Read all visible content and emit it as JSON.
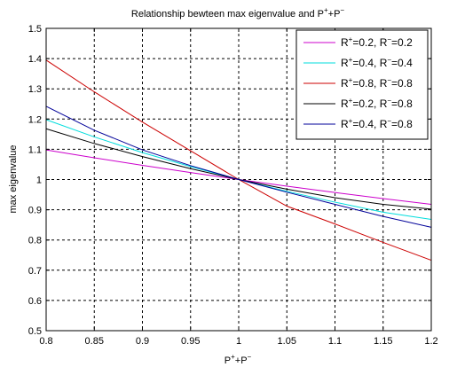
{
  "chart_data": {
    "type": "line",
    "title": {
      "main": "Relationship bewteen max eigenvalue and P",
      "sup1": "+",
      "mid": "+P",
      "sup2": "−"
    },
    "xlabel": {
      "p1": "P",
      "s1": "+",
      "p2": "+P",
      "s2": "−"
    },
    "ylabel": "max eigenvalue",
    "xlim": [
      0.8,
      1.2
    ],
    "ylim": [
      0.5,
      1.5
    ],
    "grid": true,
    "legend_position": "top-right",
    "x_ticks": [
      "0.8",
      "0.85",
      "0.9",
      "0.95",
      "1",
      "1.05",
      "1.1",
      "1.15",
      "1.2"
    ],
    "y_ticks": [
      "0.5",
      "0.6",
      "0.7",
      "0.8",
      "0.9",
      "1",
      "1.1",
      "1.2",
      "1.3",
      "1.4",
      "1.5"
    ],
    "x_tick_values": [
      0.8,
      0.85,
      0.9,
      0.95,
      1.0,
      1.05,
      1.1,
      1.15,
      1.2
    ],
    "y_tick_values": [
      0.5,
      0.6,
      0.7,
      0.8,
      0.9,
      1.0,
      1.1,
      1.2,
      1.3,
      1.4,
      1.5
    ],
    "x": [
      0.8,
      0.85,
      0.9,
      0.95,
      1.0,
      1.05,
      1.1,
      1.15,
      1.2
    ],
    "series": [
      {
        "name": "R+=0.2, R−=0.2",
        "legend": {
          "r1": "R",
          "s1": "+",
          "m": "=0.2, R",
          "s2": "−",
          "e": "=0.2"
        },
        "color": "#cc00cc",
        "values": [
          1.098,
          1.072,
          1.047,
          1.023,
          1.0,
          0.978,
          0.957,
          0.937,
          0.918
        ]
      },
      {
        "name": "R+=0.4, R−=0.4",
        "legend": {
          "r1": "R",
          "s1": "+",
          "m": "=0.4, R",
          "s2": "−",
          "e": "=0.4"
        },
        "color": "#00dddd",
        "values": [
          1.198,
          1.141,
          1.089,
          1.043,
          1.0,
          0.961,
          0.925,
          0.892,
          0.868
        ]
      },
      {
        "name": "R+=0.8, R−=0.8",
        "legend": {
          "r1": "R",
          "s1": "+",
          "m": "=0.8, R",
          "s2": "−",
          "e": "=0.8"
        },
        "color": "#cc0000",
        "values": [
          1.395,
          1.29,
          1.19,
          1.095,
          1.0,
          0.912,
          0.853,
          0.792,
          0.733
        ]
      },
      {
        "name": "R+=0.2, R−=0.8",
        "legend": {
          "r1": "R",
          "s1": "+",
          "m": "=0.2, R",
          "s2": "−",
          "e": "=0.8"
        },
        "color": "#000000",
        "values": [
          1.168,
          1.119,
          1.076,
          1.036,
          1.0,
          0.968,
          0.94,
          0.918,
          0.902
        ]
      },
      {
        "name": "R+=0.4, R−=0.8",
        "legend": {
          "r1": "R",
          "s1": "+",
          "m": "=0.4, R",
          "s2": "−",
          "e": "=0.8"
        },
        "color": "#000099",
        "values": [
          1.242,
          1.163,
          1.098,
          1.046,
          1.0,
          0.958,
          0.918,
          0.878,
          0.842
        ]
      }
    ]
  }
}
